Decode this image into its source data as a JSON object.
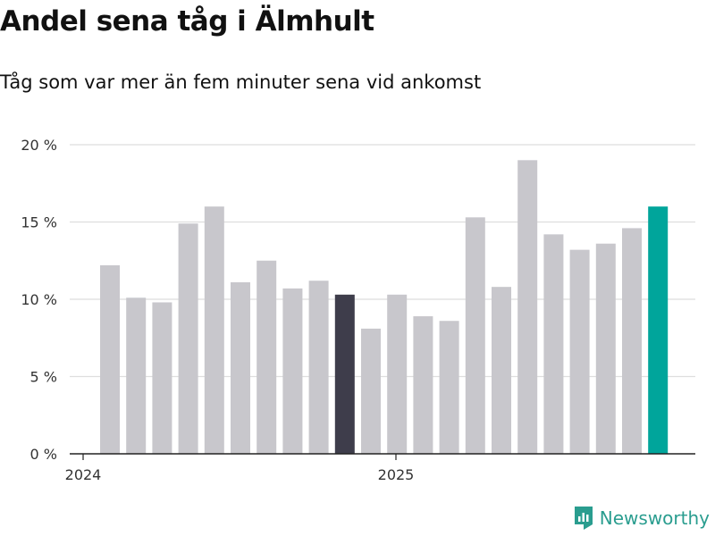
{
  "title": "Andel sena tåg i Älmhult",
  "subtitle": "Tåg som var mer än fem minuter sena vid ankomst",
  "brand": {
    "name": "Newsworthy",
    "icon": "newsworthy-logo-icon",
    "color": "#2a9d8f"
  },
  "chart_data": {
    "type": "bar",
    "title": "Andel sena tåg i Älmhult",
    "subtitle": "Tåg som var mer än fem minuter sena vid ankomst",
    "xlabel": "",
    "ylabel": "",
    "ylim": [
      0,
      20
    ],
    "yticks": [
      0,
      5,
      10,
      15,
      20
    ],
    "ytick_labels": [
      "0 %",
      "5 %",
      "10 %",
      "15 %",
      "20 %"
    ],
    "xtick_labels": [
      {
        "label": "2024",
        "index": 0
      },
      {
        "label": "2025",
        "index": 12
      }
    ],
    "grid": true,
    "colors": {
      "default": "#c8c7cc",
      "highlight_dark": "#3e3d4b",
      "highlight_latest": "#00a59b"
    },
    "values": [
      12.2,
      10.1,
      9.8,
      14.9,
      16.0,
      11.1,
      12.5,
      10.7,
      11.2,
      10.3,
      8.1,
      10.3,
      8.9,
      8.6,
      15.3,
      10.8,
      19.0,
      14.2,
      13.2,
      13.6,
      14.6,
      16.0
    ],
    "highlights": [
      {
        "index": 9,
        "color": "highlight_dark"
      },
      {
        "index": 21,
        "color": "highlight_latest"
      }
    ]
  }
}
